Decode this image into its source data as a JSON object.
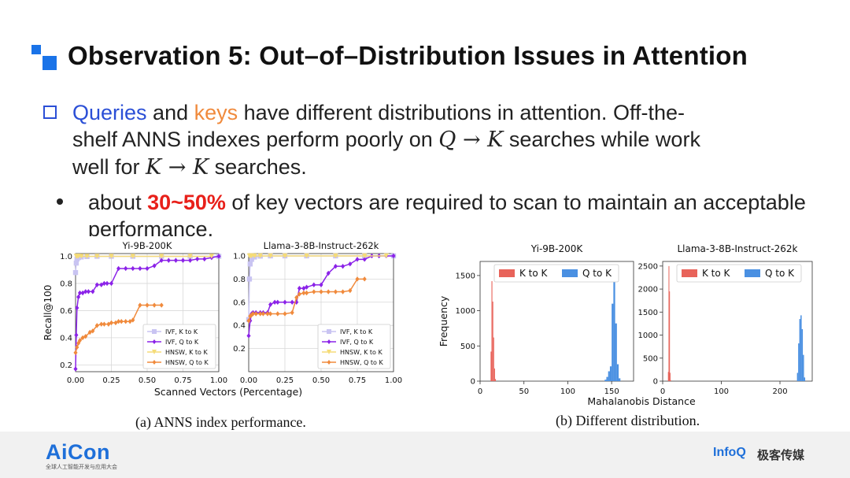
{
  "slide": {
    "title": "Observation 5: Out–of–Distribution Issues in Attention",
    "para": {
      "queries": "Queries",
      "and": " and ",
      "keys": "keys",
      "line1_rest": " have different distributions in attention. Off-the-",
      "line2_a": "shelf ANNS indexes perform poorly on ",
      "qk_math": "Q → K",
      "line2_b": " searches while work",
      "line3_a": "well for ",
      "kk_math": "K → K",
      "line3_b": " searches."
    },
    "sub": {
      "pre": "about ",
      "highlight": "30~50%",
      "post": " of key vectors are required to scan to maintain an acceptable performance."
    },
    "caption_a": "(a) ANNS index performance.",
    "caption_b": "(b) Different distribution.",
    "footer": {
      "brand": "AiCon",
      "brand_sub": "全球人工智能开发与应用大会",
      "infoq": "InfoQ",
      "infoq_cn": "极客传媒"
    },
    "colors": {
      "accent_blue": "#1a73e8",
      "queries_blue": "#2b4fd6",
      "keys_orange": "#f08a3c",
      "highlight_red": "#e8201a"
    }
  },
  "chart_data": [
    {
      "type": "line",
      "title": "Yi-9B-200K",
      "xlabel": "Scanned Vectors (Percentage)",
      "ylabel": "Recall@100",
      "xlim": [
        0,
        1.0
      ],
      "ylim": [
        0.15,
        1.02
      ],
      "xticks": [
        "0.00",
        "0.25",
        "0.50",
        "0.75",
        "1.00"
      ],
      "yticks": [
        "0.2",
        "0.4",
        "0.6",
        "0.8",
        "1.0"
      ],
      "legend_position": "lower-right",
      "grid": true,
      "series": [
        {
          "name": "IVF, K to K",
          "color": "#c9c4f2",
          "marker": "square",
          "x": [
            0.0,
            0.005,
            0.01,
            0.02,
            0.04,
            0.08,
            0.15,
            0.25,
            0.4,
            0.6,
            0.8,
            1.0
          ],
          "y": [
            0.88,
            0.95,
            0.98,
            0.99,
            0.995,
            0.998,
            1.0,
            1.0,
            1.0,
            1.0,
            1.0,
            1.0
          ]
        },
        {
          "name": "IVF, Q to K",
          "color": "#8b22e8",
          "marker": "diamond",
          "x": [
            0.0,
            0.005,
            0.01,
            0.02,
            0.03,
            0.05,
            0.07,
            0.09,
            0.12,
            0.15,
            0.18,
            0.2,
            0.22,
            0.25,
            0.3,
            0.35,
            0.4,
            0.45,
            0.5,
            0.55,
            0.6,
            0.65,
            0.7,
            0.75,
            0.8,
            0.85,
            0.9,
            0.95,
            1.0
          ],
          "y": [
            0.17,
            0.42,
            0.62,
            0.7,
            0.73,
            0.73,
            0.74,
            0.74,
            0.74,
            0.79,
            0.79,
            0.8,
            0.8,
            0.8,
            0.91,
            0.91,
            0.91,
            0.91,
            0.91,
            0.93,
            0.97,
            0.97,
            0.97,
            0.97,
            0.97,
            0.98,
            0.98,
            0.99,
            1.0
          ]
        },
        {
          "name": "HNSW, K to K",
          "color": "#f5dc78",
          "marker": "triangle-down",
          "x": [
            0.005,
            0.01,
            0.02,
            0.04,
            0.08,
            0.15,
            0.25,
            0.4,
            0.6,
            0.8,
            0.95
          ],
          "y": [
            1.0,
            1.0,
            1.0,
            1.0,
            1.0,
            1.0,
            1.0,
            1.0,
            1.0,
            1.0,
            1.0
          ]
        },
        {
          "name": "HNSW, Q to K",
          "color": "#f08a3c",
          "marker": "diamond",
          "x": [
            0.0,
            0.01,
            0.02,
            0.03,
            0.05,
            0.07,
            0.1,
            0.12,
            0.15,
            0.18,
            0.2,
            0.23,
            0.25,
            0.28,
            0.3,
            0.32,
            0.35,
            0.38,
            0.4,
            0.45,
            0.5,
            0.55,
            0.6
          ],
          "y": [
            0.29,
            0.33,
            0.36,
            0.38,
            0.4,
            0.41,
            0.44,
            0.45,
            0.49,
            0.5,
            0.5,
            0.5,
            0.51,
            0.51,
            0.52,
            0.52,
            0.52,
            0.52,
            0.53,
            0.64,
            0.64,
            0.64,
            0.64
          ]
        }
      ]
    },
    {
      "type": "line",
      "title": "Llama-3-8B-Instruct-262k",
      "xlabel": "Scanned Vectors (Percentage)",
      "ylabel": "",
      "xlim": [
        0,
        1.0
      ],
      "ylim": [
        0.0,
        1.02
      ],
      "xticks": [
        "0.00",
        "0.25",
        "0.50",
        "0.75",
        "1.00"
      ],
      "yticks": [
        "0.2",
        "0.4",
        "0.6",
        "0.8",
        "1.0"
      ],
      "legend_position": "lower-right",
      "grid": true,
      "series": [
        {
          "name": "IVF, K to K",
          "color": "#c9c4f2",
          "marker": "square",
          "x": [
            0.0,
            0.005,
            0.01,
            0.02,
            0.04,
            0.08,
            0.15,
            0.25,
            0.4,
            0.6,
            0.8,
            1.0
          ],
          "y": [
            0.45,
            0.8,
            0.93,
            0.97,
            0.99,
            0.998,
            1.0,
            1.0,
            1.0,
            1.0,
            1.0,
            1.0
          ]
        },
        {
          "name": "IVF, Q to K",
          "color": "#8b22e8",
          "marker": "diamond",
          "x": [
            0.0,
            0.01,
            0.02,
            0.03,
            0.05,
            0.08,
            0.1,
            0.13,
            0.15,
            0.18,
            0.2,
            0.25,
            0.3,
            0.33,
            0.35,
            0.38,
            0.4,
            0.45,
            0.5,
            0.55,
            0.6,
            0.65,
            0.7,
            0.75,
            0.8,
            0.85,
            0.9,
            0.95,
            1.0
          ],
          "y": [
            0.31,
            0.44,
            0.5,
            0.51,
            0.51,
            0.51,
            0.51,
            0.51,
            0.58,
            0.6,
            0.6,
            0.6,
            0.6,
            0.6,
            0.72,
            0.72,
            0.73,
            0.75,
            0.75,
            0.85,
            0.91,
            0.91,
            0.93,
            0.97,
            0.97,
            1.0,
            1.0,
            1.0,
            1.0
          ]
        },
        {
          "name": "HNSW, K to K",
          "color": "#f5dc78",
          "marker": "triangle-down",
          "x": [
            0.005,
            0.01,
            0.02,
            0.04,
            0.08,
            0.15,
            0.25,
            0.4,
            0.6,
            0.8,
            0.95
          ],
          "y": [
            1.0,
            1.0,
            1.0,
            1.0,
            1.0,
            1.0,
            1.0,
            1.0,
            1.0,
            1.0,
            1.0
          ]
        },
        {
          "name": "HNSW, Q to K",
          "color": "#f08a3c",
          "marker": "diamond",
          "x": [
            0.0,
            0.01,
            0.02,
            0.03,
            0.05,
            0.08,
            0.1,
            0.13,
            0.15,
            0.2,
            0.25,
            0.3,
            0.33,
            0.35,
            0.38,
            0.4,
            0.45,
            0.5,
            0.55,
            0.6,
            0.65,
            0.7,
            0.75,
            0.8
          ],
          "y": [
            0.44,
            0.48,
            0.49,
            0.5,
            0.5,
            0.5,
            0.5,
            0.5,
            0.5,
            0.5,
            0.5,
            0.51,
            0.64,
            0.67,
            0.68,
            0.68,
            0.69,
            0.69,
            0.69,
            0.69,
            0.69,
            0.7,
            0.8,
            0.8
          ]
        }
      ]
    },
    {
      "type": "bar",
      "title": "Yi-9B-200K",
      "xlabel": "Mahalanobis Distance",
      "ylabel": "Frequency",
      "xlim": [
        0,
        175
      ],
      "ylim": [
        0,
        1700
      ],
      "xticks": [
        "0",
        "50",
        "100",
        "150"
      ],
      "yticks": [
        "0",
        "500",
        "1000",
        "1500"
      ],
      "legend_position": "top",
      "series": [
        {
          "name": "K to K",
          "color": "#e8635a",
          "bins": [
            [
              12,
              13
            ],
            [
              13,
              14
            ],
            [
              14,
              15
            ],
            [
              15,
              16
            ],
            [
              16,
              17
            ],
            [
              17,
              18
            ]
          ],
          "values": [
            420,
            1420,
            1130,
            620,
            180,
            30
          ]
        },
        {
          "name": "Q to K",
          "color": "#4a90e2",
          "bins": [
            [
              142,
              144
            ],
            [
              144,
              146
            ],
            [
              146,
              148
            ],
            [
              148,
              150
            ],
            [
              150,
              152
            ],
            [
              152,
              154
            ],
            [
              154,
              156
            ],
            [
              156,
              158
            ],
            [
              158,
              160
            ]
          ],
          "values": [
            20,
            60,
            140,
            210,
            1100,
            1480,
            820,
            240,
            40
          ]
        }
      ]
    },
    {
      "type": "bar",
      "title": "Llama-3-8B-Instruct-262k",
      "xlabel": "",
      "ylabel": "",
      "xlim": [
        0,
        255
      ],
      "ylim": [
        0,
        2600
      ],
      "xticks": [
        "0",
        "100",
        "200"
      ],
      "yticks": [
        "0",
        "500",
        "1000",
        "1500",
        "2000",
        "2500"
      ],
      "legend_position": "top",
      "series": [
        {
          "name": "K to K",
          "color": "#e8635a",
          "bins": [
            [
              9,
              10
            ],
            [
              10,
              11
            ],
            [
              11,
              12
            ],
            [
              12,
              13
            ],
            [
              13,
              14
            ]
          ],
          "values": [
            200,
            2500,
            1950,
            180,
            20
          ]
        },
        {
          "name": "Q to K",
          "color": "#4a90e2",
          "bins": [
            [
              229,
              231
            ],
            [
              231,
              233
            ],
            [
              233,
              235
            ],
            [
              235,
              237
            ],
            [
              237,
              239
            ],
            [
              239,
              241
            ],
            [
              241,
              243
            ]
          ],
          "values": [
            180,
            820,
            1350,
            1430,
            1130,
            570,
            80
          ]
        }
      ]
    }
  ]
}
